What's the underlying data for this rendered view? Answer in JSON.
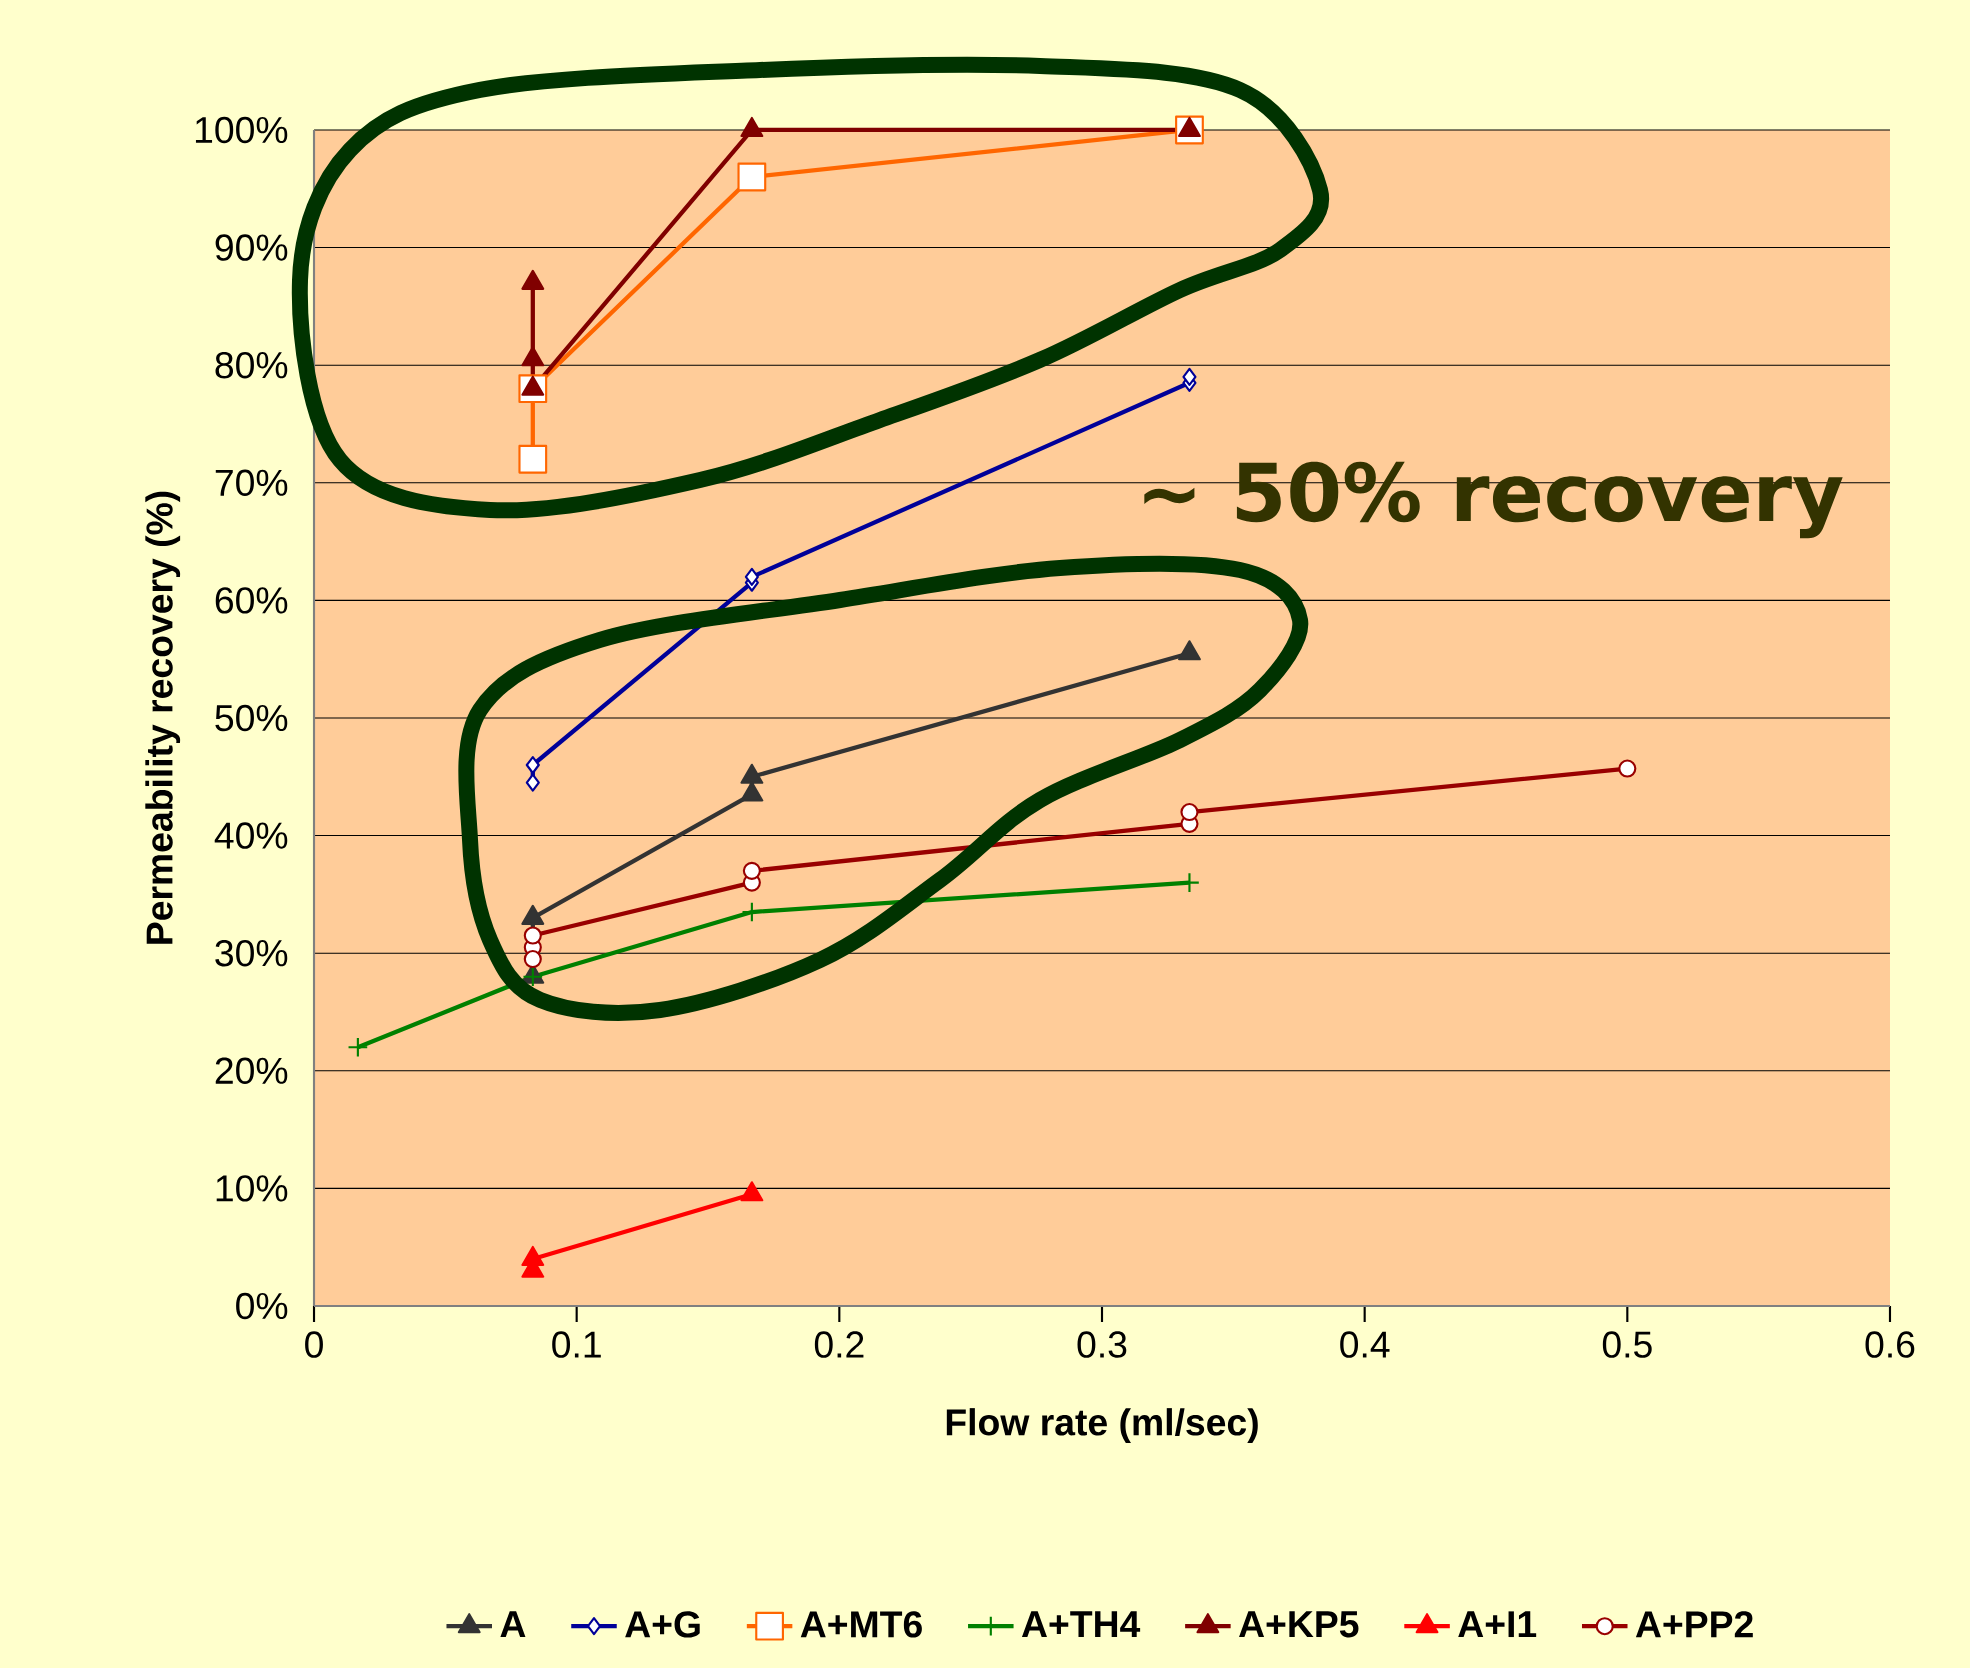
{
  "chart_data": {
    "type": "line",
    "xlabel": "Flow rate (ml/sec)",
    "ylabel": "Permeability recovery (%)",
    "xlim": [
      0,
      0.6
    ],
    "xticks": [
      0,
      0.1,
      0.2,
      0.3,
      0.4,
      0.5,
      0.6
    ],
    "ylim": [
      0,
      100
    ],
    "yticks": [
      {
        "value": 0,
        "label": "0%"
      },
      {
        "value": 10,
        "label": "10%"
      },
      {
        "value": 20,
        "label": "20%"
      },
      {
        "value": 30,
        "label": "30%"
      },
      {
        "value": 40,
        "label": "40%"
      },
      {
        "value": 50,
        "label": "50%"
      },
      {
        "value": 60,
        "label": "60%"
      },
      {
        "value": 70,
        "label": "70%"
      },
      {
        "value": 80,
        "label": "80%"
      },
      {
        "value": 90,
        "label": "90%"
      },
      {
        "value": 100,
        "label": "100%"
      }
    ],
    "grid": "y",
    "legend": "bottom",
    "annotations": [
      "~ 50% recovery"
    ],
    "series": [
      {
        "name": "A",
        "color": "#333333",
        "marker": "triangle",
        "x": [
          0.0833,
          0.0833,
          0.1667,
          0.1667,
          0.3333
        ],
        "values": [
          28,
          33,
          43.5,
          45,
          55.5
        ]
      },
      {
        "name": "A+G",
        "color": "#000099",
        "marker": "diamond",
        "x": [
          0.0833,
          0.0833,
          0.1667,
          0.1667,
          0.3333,
          0.3333
        ],
        "values": [
          44.5,
          46,
          61.5,
          62,
          78.5,
          79
        ]
      },
      {
        "name": "A+MT6",
        "color": "#ff6600",
        "marker": "square",
        "x": [
          0.0833,
          0.0833,
          0.1667,
          0.3333
        ],
        "values": [
          72,
          78,
          96,
          100
        ]
      },
      {
        "name": "A+TH4",
        "color": "#008000",
        "marker": "cross",
        "x": [
          0.0167,
          0.0833,
          0.1667,
          0.3333
        ],
        "values": [
          22,
          28,
          33.5,
          36
        ]
      },
      {
        "name": "A+KP5",
        "color": "#800000",
        "marker": "triangle",
        "x": [
          0.0833,
          0.0833,
          0.0833,
          0.1667,
          0.3333
        ],
        "values": [
          87,
          80.5,
          78,
          100,
          100
        ]
      },
      {
        "name": "A+I1",
        "color": "#ff0000",
        "marker": "triangle",
        "x": [
          0.0833,
          0.0833,
          0.1667
        ],
        "values": [
          3,
          4,
          9.5
        ]
      },
      {
        "name": "A+PP2",
        "color": "#990000",
        "marker": "circle",
        "x": [
          0.0833,
          0.0833,
          0.0833,
          0.1667,
          0.1667,
          0.3333,
          0.3333,
          0.5
        ],
        "values": [
          30.5,
          29.5,
          31.5,
          36,
          37,
          41,
          42,
          45.7
        ]
      }
    ]
  }
}
